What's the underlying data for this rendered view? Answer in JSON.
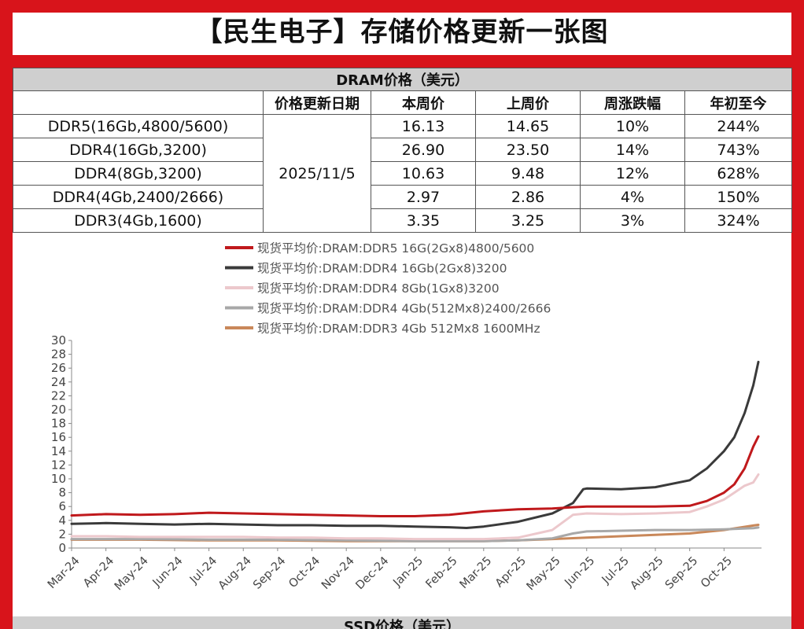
{
  "title": "【民生电子】存储价格更新一张图",
  "dram_table": {
    "section_title": "DRAM价格（美元）",
    "headers": [
      "",
      "价格更新日期",
      "本周价",
      "上周价",
      "周涨跌幅",
      "年初至今"
    ],
    "update_date": "2025/11/5",
    "rows": [
      {
        "name": "DDR5(16Gb,4800/5600)",
        "this_week": "16.13",
        "last_week": "14.65",
        "wow": "10%",
        "ytd": "244%"
      },
      {
        "name": "DDR4(16Gb,3200)",
        "this_week": "26.90",
        "last_week": "23.50",
        "wow": "14%",
        "ytd": "743%"
      },
      {
        "name": "DDR4(8Gb,3200)",
        "this_week": "10.63",
        "last_week": "9.48",
        "wow": "12%",
        "ytd": "628%"
      },
      {
        "name": "DDR4(4Gb,2400/2666)",
        "this_week": "2.97",
        "last_week": "2.86",
        "wow": "4%",
        "ytd": "150%"
      },
      {
        "name": "DDR3(4Gb,1600)",
        "this_week": "3.35",
        "last_week": "3.25",
        "wow": "3%",
        "ytd": "324%"
      }
    ]
  },
  "ssd_section_title": "SSD价格（美元）",
  "colors": {
    "frame": "#d8141b",
    "section": "#cfcfcf"
  },
  "chart_data": {
    "type": "line",
    "title": "",
    "xlabel": "",
    "ylabel": "",
    "ylim": [
      0,
      30
    ],
    "yticks": [
      0,
      2,
      4,
      6,
      8,
      10,
      12,
      14,
      16,
      18,
      20,
      22,
      24,
      26,
      28,
      30
    ],
    "xlim": [
      0,
      20
    ],
    "xticks": [
      "Mar-24",
      "Apr-24",
      "May-24",
      "Jun-24",
      "Jul-24",
      "Aug-24",
      "Sep-24",
      "Oct-24",
      "Nov-24",
      "Dec-24",
      "Jan-25",
      "Feb-25",
      "Mar-25",
      "Apr-25",
      "May-25",
      "Jun-25",
      "Jul-25",
      "Aug-25",
      "Sep-25",
      "Oct-25"
    ],
    "grid": false,
    "legend": "top",
    "series": [
      {
        "name": "现货平均价:DRAM:DDR5  16G(2Gx8)4800/5600",
        "color": "#c0191c",
        "x": [
          0,
          1,
          2,
          3,
          4,
          5,
          6,
          7,
          8,
          9,
          10,
          11,
          12,
          13,
          14,
          14.6,
          15,
          16,
          17,
          18,
          18.5,
          19,
          19.3,
          19.6,
          19.85,
          20
        ],
        "y": [
          4.7,
          4.9,
          4.8,
          4.9,
          5.1,
          5.0,
          4.9,
          4.8,
          4.7,
          4.6,
          4.6,
          4.8,
          5.3,
          5.6,
          5.7,
          5.9,
          6.0,
          6.0,
          6.0,
          6.1,
          6.8,
          8.0,
          9.2,
          11.5,
          14.65,
          16.13
        ]
      },
      {
        "name": "现货平均价:DRAM:DDR4  16Gb(2Gx8)3200",
        "color": "#3a3a3a",
        "x": [
          0,
          1,
          2,
          3,
          4,
          5,
          6,
          7,
          8,
          9,
          10,
          11,
          11.5,
          12,
          13,
          14,
          14.6,
          14.9,
          15,
          16,
          17,
          18,
          18.5,
          19,
          19.3,
          19.6,
          19.85,
          20
        ],
        "y": [
          3.5,
          3.6,
          3.5,
          3.4,
          3.5,
          3.4,
          3.3,
          3.3,
          3.2,
          3.2,
          3.1,
          3.0,
          2.9,
          3.1,
          3.8,
          5.0,
          6.5,
          8.5,
          8.6,
          8.5,
          8.8,
          9.8,
          11.5,
          14.0,
          16.0,
          19.5,
          23.5,
          26.9
        ]
      },
      {
        "name": "现货平均价:DRAM:DDR4  8Gb(1Gx8)3200",
        "color": "#ecc8cc",
        "x": [
          0,
          1,
          2,
          3,
          4,
          5,
          6,
          7,
          8,
          9,
          10,
          11,
          12,
          13,
          14,
          14.6,
          15,
          16,
          17,
          18,
          18.5,
          19,
          19.3,
          19.6,
          19.85,
          20
        ],
        "y": [
          1.7,
          1.7,
          1.6,
          1.6,
          1.6,
          1.6,
          1.5,
          1.5,
          1.4,
          1.4,
          1.3,
          1.3,
          1.3,
          1.5,
          2.6,
          4.8,
          5.0,
          4.9,
          5.0,
          5.2,
          6.0,
          7.0,
          8.0,
          9.0,
          9.48,
          10.63
        ]
      },
      {
        "name": "现货平均价:DRAM:DDR4  4Gb(512Mx8)2400/2666",
        "color": "#a8a8a8",
        "x": [
          0,
          2,
          4,
          6,
          8,
          10,
          12,
          13,
          14,
          14.6,
          15,
          16,
          17,
          18,
          19,
          19.85,
          20
        ],
        "y": [
          1.3,
          1.3,
          1.2,
          1.2,
          1.1,
          1.0,
          1.0,
          1.1,
          1.4,
          2.1,
          2.4,
          2.5,
          2.6,
          2.6,
          2.7,
          2.86,
          2.97
        ]
      },
      {
        "name": "现货平均价:DRAM:DDR3  4Gb 512Mx8 1600MHz",
        "color": "#c9885a",
        "x": [
          0,
          2,
          4,
          6,
          8,
          10,
          12,
          13,
          14,
          15,
          16,
          17,
          18,
          19,
          19.85,
          20
        ],
        "y": [
          1.2,
          1.2,
          1.1,
          1.1,
          1.0,
          1.0,
          1.0,
          1.1,
          1.3,
          1.5,
          1.7,
          1.9,
          2.1,
          2.6,
          3.25,
          3.35
        ]
      }
    ]
  }
}
